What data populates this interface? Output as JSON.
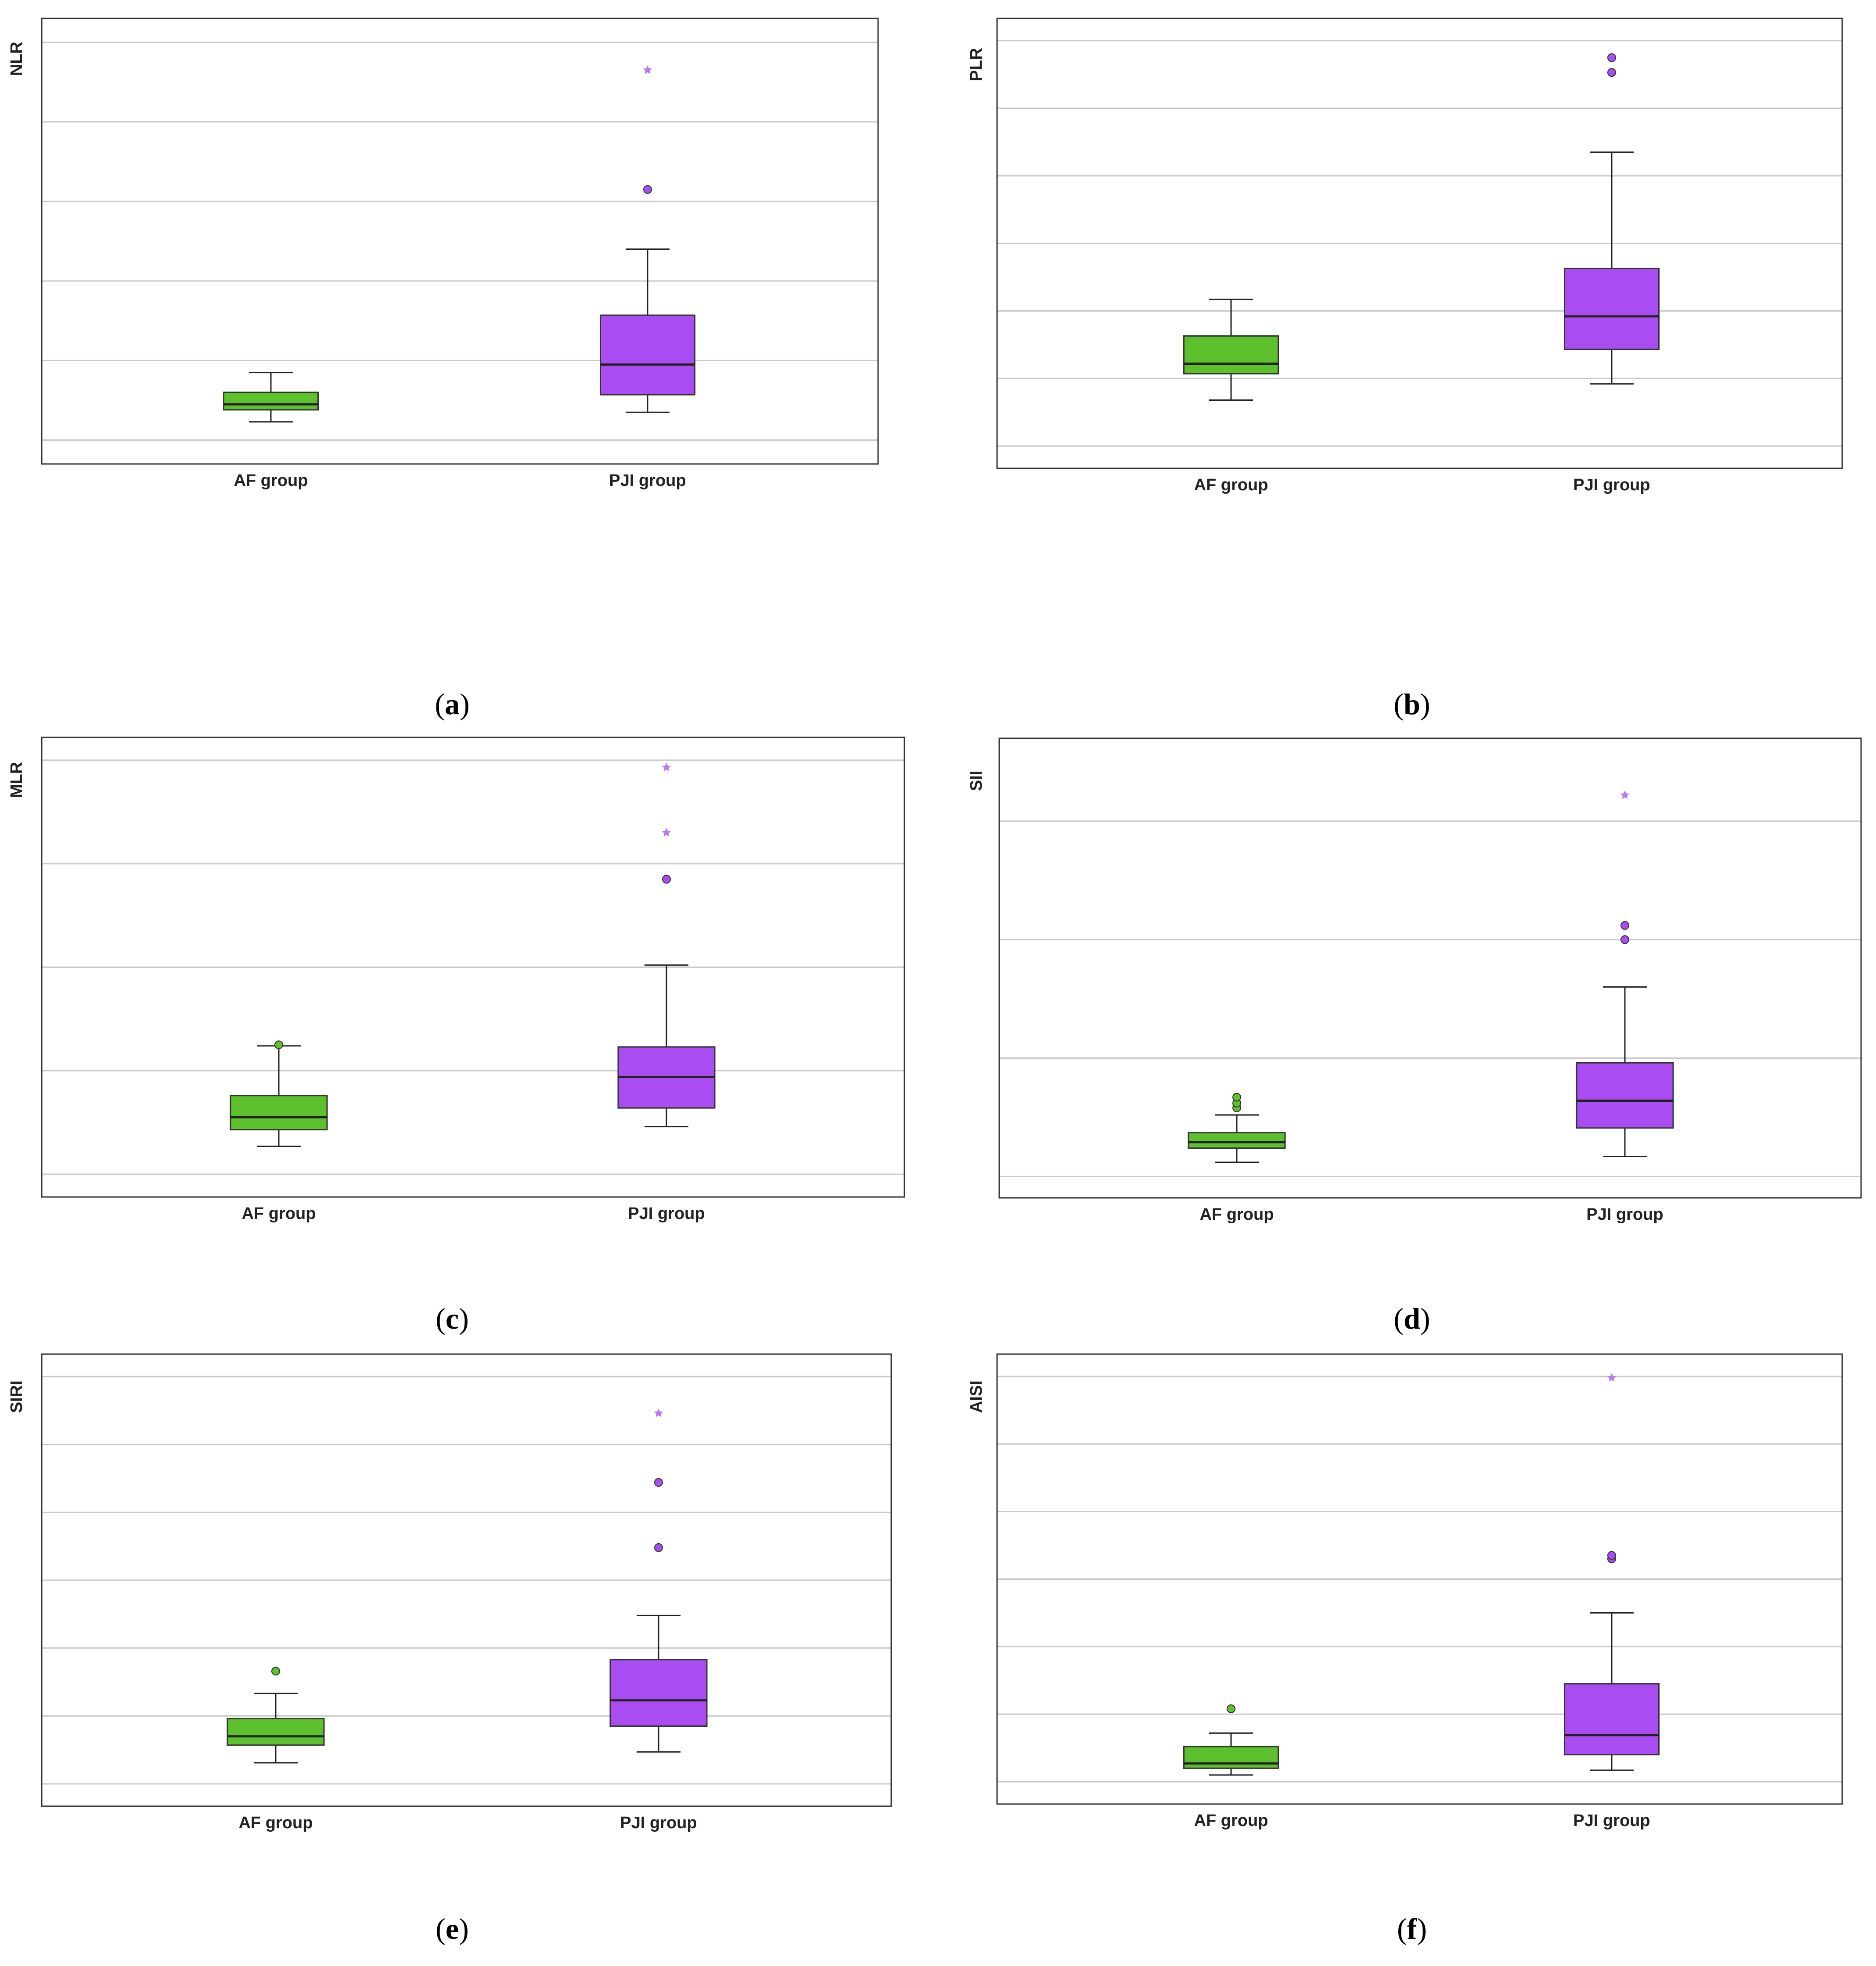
{
  "figure": {
    "colors": {
      "af_fill": "#5cc12d",
      "pji_fill": "#a94cf2",
      "af_outlier": "#5cc12d",
      "pji_outlier": "#a94cf2",
      "pji_extreme": "#b676f5",
      "grid": "#c8c8c8",
      "frame": "#333333",
      "median": "#222222"
    },
    "categories": [
      "AF group",
      "PJI group"
    ]
  },
  "chart_data": [
    {
      "id": "a",
      "caption_letter": "a",
      "type": "boxplot",
      "ylabel": "NLR",
      "title": "",
      "ylim": [
        -0.3,
        5.3
      ],
      "gridlines": [
        0,
        1,
        2,
        3,
        4,
        5
      ],
      "categories": [
        "AF group",
        "PJI group"
      ],
      "series": [
        {
          "name": "AF group",
          "whisker_low": 0.23,
          "q1": 0.38,
          "median": 0.45,
          "q3": 0.6,
          "whisker_high": 0.85,
          "outliers": [],
          "extremes": []
        },
        {
          "name": "PJI group",
          "whisker_low": 0.35,
          "q1": 0.57,
          "median": 0.95,
          "q3": 1.57,
          "whisker_high": 2.4,
          "outliers": [
            3.15
          ],
          "extremes": [
            4.65
          ]
        }
      ]
    },
    {
      "id": "b",
      "caption_letter": "b",
      "type": "boxplot",
      "ylabel": "PLR",
      "title": "",
      "ylim": [
        -0.33,
        6.33
      ],
      "gridlines": [
        0,
        1,
        2,
        3,
        4,
        5,
        6
      ],
      "categories": [
        "AF group",
        "PJI group"
      ],
      "series": [
        {
          "name": "AF group",
          "whisker_low": 0.68,
          "q1": 1.07,
          "median": 1.22,
          "q3": 1.63,
          "whisker_high": 2.17,
          "outliers": [],
          "extremes": []
        },
        {
          "name": "PJI group",
          "whisker_low": 0.92,
          "q1": 1.43,
          "median": 1.92,
          "q3": 2.63,
          "whisker_high": 4.35,
          "outliers": [
            5.53,
            5.75
          ],
          "extremes": []
        }
      ]
    },
    {
      "id": "c",
      "caption_letter": "c",
      "type": "boxplot",
      "ylabel": "MLR",
      "title": "",
      "ylim": [
        -0.22,
        4.22
      ],
      "gridlines": [
        0,
        1,
        2,
        3,
        4
      ],
      "categories": [
        "AF group",
        "PJI group"
      ],
      "series": [
        {
          "name": "AF group",
          "whisker_low": 0.27,
          "q1": 0.43,
          "median": 0.55,
          "q3": 0.76,
          "whisker_high": 1.24,
          "outliers": [
            1.25
          ],
          "extremes": []
        },
        {
          "name": "PJI group",
          "whisker_low": 0.46,
          "q1": 0.64,
          "median": 0.94,
          "q3": 1.23,
          "whisker_high": 2.02,
          "outliers": [
            2.85
          ],
          "extremes": [
            3.3,
            3.93
          ]
        }
      ]
    },
    {
      "id": "d",
      "caption_letter": "d",
      "type": "boxplot",
      "ylabel": "SII",
      "title": "",
      "ylim": [
        -0.18,
        3.7
      ],
      "gridlines": [
        0,
        1,
        2,
        3
      ],
      "categories": [
        "AF group",
        "PJI group"
      ],
      "series": [
        {
          "name": "AF group",
          "whisker_low": 0.12,
          "q1": 0.24,
          "median": 0.29,
          "q3": 0.37,
          "whisker_high": 0.52,
          "outliers": [
            0.58,
            0.62,
            0.67
          ],
          "extremes": []
        },
        {
          "name": "PJI group",
          "whisker_low": 0.17,
          "q1": 0.41,
          "median": 0.64,
          "q3": 0.96,
          "whisker_high": 1.6,
          "outliers": [
            2.0,
            2.12
          ],
          "extremes": [
            3.22
          ]
        }
      ]
    },
    {
      "id": "e",
      "caption_letter": "e",
      "type": "boxplot",
      "ylabel": "SIRI",
      "title": "",
      "ylim": [
        -0.33,
        6.33
      ],
      "gridlines": [
        0,
        1,
        2,
        3,
        4,
        5,
        6
      ],
      "categories": [
        "AF group",
        "PJI group"
      ],
      "series": [
        {
          "name": "AF group",
          "whisker_low": 0.31,
          "q1": 0.57,
          "median": 0.7,
          "q3": 0.96,
          "whisker_high": 1.33,
          "outliers": [
            1.66
          ],
          "extremes": []
        },
        {
          "name": "PJI group",
          "whisker_low": 0.47,
          "q1": 0.85,
          "median": 1.23,
          "q3": 1.83,
          "whisker_high": 2.48,
          "outliers": [
            3.48,
            4.44
          ],
          "extremes": [
            5.46
          ]
        }
      ]
    },
    {
      "id": "f",
      "caption_letter": "f",
      "type": "boxplot",
      "ylabel": "AISI",
      "title": "",
      "ylim": [
        -0.33,
        6.33
      ],
      "gridlines": [
        0,
        1,
        2,
        3,
        4,
        5,
        6
      ],
      "categories": [
        "AF group",
        "PJI group"
      ],
      "series": [
        {
          "name": "AF group",
          "whisker_low": 0.1,
          "q1": 0.2,
          "median": 0.27,
          "q3": 0.52,
          "whisker_high": 0.72,
          "outliers": [
            1.08
          ],
          "extremes": []
        },
        {
          "name": "PJI group",
          "whisker_low": 0.17,
          "q1": 0.4,
          "median": 0.69,
          "q3": 1.45,
          "whisker_high": 2.5,
          "outliers": [
            3.3,
            3.35
          ],
          "extremes": [
            5.98
          ]
        }
      ]
    }
  ]
}
